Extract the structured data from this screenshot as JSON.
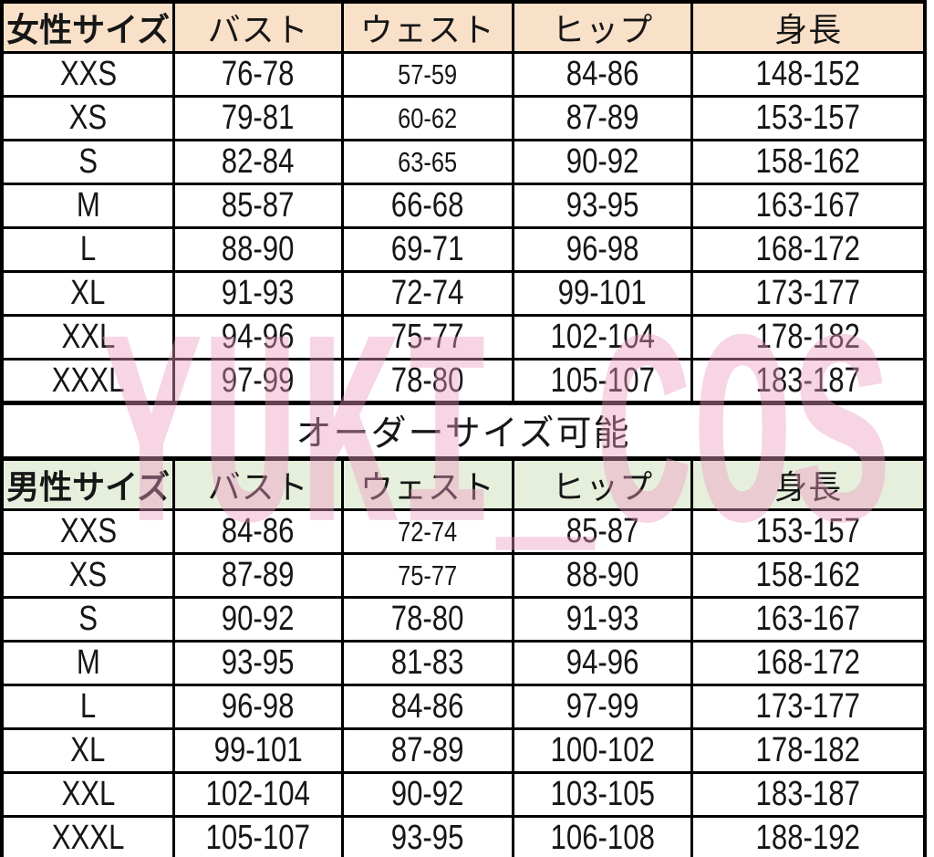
{
  "watermark": {
    "text": "YUKI_COS"
  },
  "order_note": "オーダーサイズ可能",
  "colors": {
    "women_header_bg": "#f9e0c8",
    "men_header_bg": "#e6efdc",
    "watermark_pink": "#ee9cc2",
    "border": "#000000"
  },
  "chart_data": [
    {
      "type": "table",
      "title": "女性サイズ",
      "columns": [
        "女性サイズ",
        "バスト",
        "ウェスト",
        "ヒップ",
        "身長"
      ],
      "rows": [
        [
          "XXS",
          "76-78",
          "57-59",
          "84-86",
          "148-152"
        ],
        [
          "XS",
          "79-81",
          "60-62",
          "87-89",
          "153-157"
        ],
        [
          "S",
          "82-84",
          "63-65",
          "90-92",
          "158-162"
        ],
        [
          "M",
          "85-87",
          "66-68",
          "93-95",
          "163-167"
        ],
        [
          "L",
          "88-90",
          "69-71",
          "96-98",
          "168-172"
        ],
        [
          "XL",
          "91-93",
          "72-74",
          "99-101",
          "173-177"
        ],
        [
          "XXL",
          "94-96",
          "75-77",
          "102-104",
          "178-182"
        ],
        [
          "XXXL",
          "97-99",
          "78-80",
          "105-107",
          "183-187"
        ]
      ]
    },
    {
      "type": "table",
      "title": "男性サイズ",
      "columns": [
        "男性サイズ",
        "バスト",
        "ウェスト",
        "ヒップ",
        "身長"
      ],
      "rows": [
        [
          "XXS",
          "84-86",
          "72-74",
          "85-87",
          "153-157"
        ],
        [
          "XS",
          "87-89",
          "75-77",
          "88-90",
          "158-162"
        ],
        [
          "S",
          "90-92",
          "78-80",
          "91-93",
          "163-167"
        ],
        [
          "M",
          "93-95",
          "81-83",
          "94-96",
          "168-172"
        ],
        [
          "L",
          "96-98",
          "84-86",
          "97-99",
          "173-177"
        ],
        [
          "XL",
          "99-101",
          "87-89",
          "100-102",
          "178-182"
        ],
        [
          "XXL",
          "102-104",
          "90-92",
          "103-105",
          "183-187"
        ],
        [
          "XXXL",
          "105-107",
          "93-95",
          "106-108",
          "188-192"
        ]
      ]
    }
  ]
}
